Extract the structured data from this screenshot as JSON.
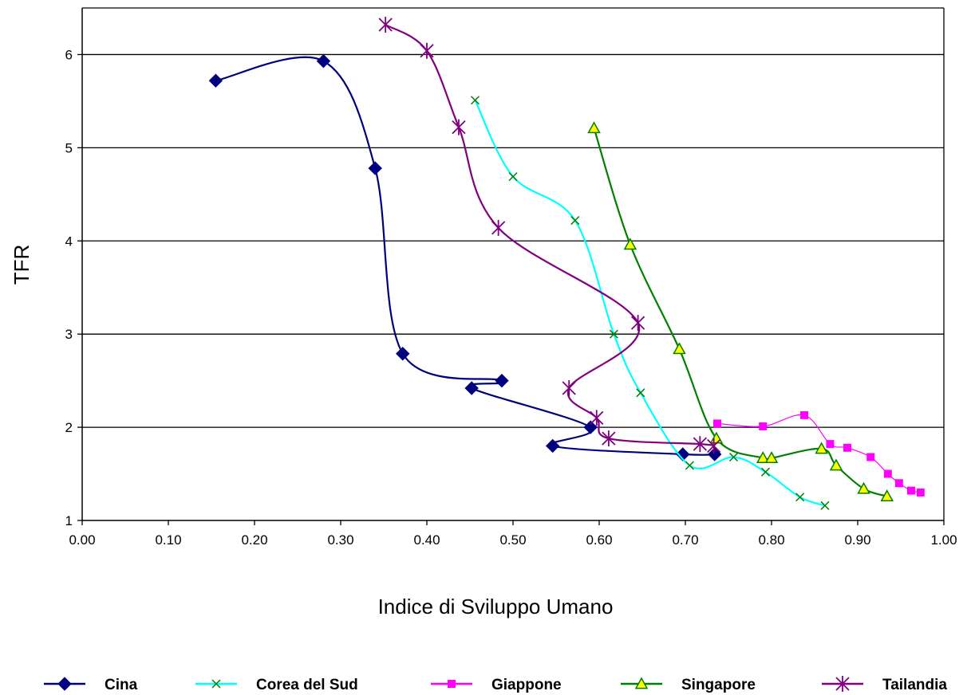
{
  "chart_data": {
    "type": "line",
    "title": "",
    "xlabel": "Indice di Sviluppo Umano",
    "ylabel": "TFR",
    "xlim": [
      0.0,
      1.0
    ],
    "ylim": [
      1,
      6.5
    ],
    "x_ticks": [
      "0.00",
      "0.10",
      "0.20",
      "0.30",
      "0.40",
      "0.50",
      "0.60",
      "0.70",
      "0.80",
      "0.90",
      "1.00"
    ],
    "y_ticks": [
      "1",
      "2",
      "3",
      "4",
      "5",
      "6"
    ],
    "grid": "horizontal",
    "legend_position": "bottom",
    "series": [
      {
        "name": "Cina",
        "color": "#00007f",
        "marker": "diamond",
        "points": [
          [
            0.155,
            5.72
          ],
          [
            0.28,
            5.93
          ],
          [
            0.34,
            4.78
          ],
          [
            0.372,
            2.79
          ],
          [
            0.487,
            2.5
          ],
          [
            0.452,
            2.42
          ],
          [
            0.59,
            2.0
          ],
          [
            0.546,
            1.8
          ],
          [
            0.697,
            1.71
          ],
          [
            0.734,
            1.71
          ]
        ]
      },
      {
        "name": "Corea del Sud",
        "color": "#00ffff",
        "marker": "x",
        "points": [
          [
            0.456,
            5.51
          ],
          [
            0.5,
            4.69
          ],
          [
            0.572,
            4.22
          ],
          [
            0.617,
            3.0
          ],
          [
            0.648,
            2.37
          ],
          [
            0.705,
            1.59
          ],
          [
            0.756,
            1.68
          ],
          [
            0.793,
            1.52
          ],
          [
            0.833,
            1.25
          ],
          [
            0.862,
            1.16
          ]
        ]
      },
      {
        "name": "Giappone",
        "color": "#ff00ff",
        "marker": "square",
        "points": [
          [
            0.737,
            2.04
          ],
          [
            0.79,
            2.01
          ],
          [
            0.838,
            2.13
          ],
          [
            0.868,
            1.82
          ],
          [
            0.888,
            1.78
          ],
          [
            0.915,
            1.68
          ],
          [
            0.935,
            1.5
          ],
          [
            0.948,
            1.4
          ],
          [
            0.962,
            1.32
          ],
          [
            0.973,
            1.3
          ]
        ]
      },
      {
        "name": "Singapore",
        "color": "#008000",
        "marker": "triangle",
        "points": [
          [
            0.594,
            5.21
          ],
          [
            0.636,
            3.96
          ],
          [
            0.693,
            2.84
          ],
          [
            0.736,
            1.88
          ],
          [
            0.79,
            1.67
          ],
          [
            0.8,
            1.67
          ],
          [
            0.858,
            1.77
          ],
          [
            0.875,
            1.59
          ],
          [
            0.907,
            1.34
          ],
          [
            0.934,
            1.26
          ]
        ]
      },
      {
        "name": "Tailandia",
        "color": "#800080",
        "marker": "asterisk",
        "points": [
          [
            0.352,
            6.32
          ],
          [
            0.4,
            6.04
          ],
          [
            0.437,
            5.22
          ],
          [
            0.483,
            4.14
          ],
          [
            0.645,
            3.12
          ],
          [
            0.565,
            2.42
          ],
          [
            0.597,
            2.1
          ],
          [
            0.611,
            1.88
          ],
          [
            0.717,
            1.82
          ],
          [
            0.733,
            1.8
          ]
        ]
      }
    ]
  }
}
